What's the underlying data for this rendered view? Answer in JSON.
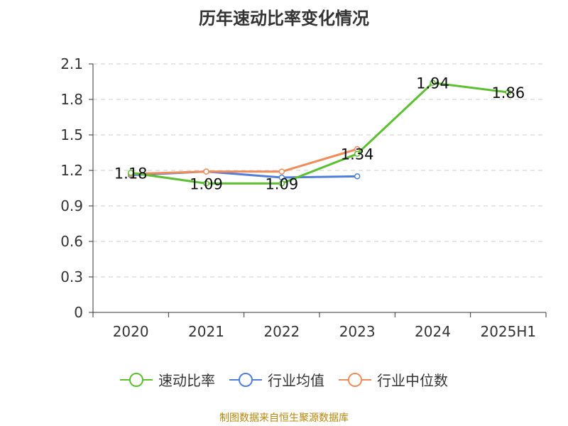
{
  "chart_data": {
    "type": "line",
    "title": "历年速动比率变化情况",
    "categories": [
      "2020",
      "2021",
      "2022",
      "2023",
      "2024",
      "2025H1"
    ],
    "ylim": [
      0,
      2.1
    ],
    "yticks": [
      "0",
      "0.3",
      "0.6",
      "0.9",
      "1.2",
      "1.5",
      "1.8",
      "2.1"
    ],
    "grid": true,
    "legend_position": "bottom",
    "series": [
      {
        "name": "速动比率",
        "color": "#5cc030",
        "values": [
          1.18,
          1.09,
          1.09,
          1.34,
          1.94,
          1.86
        ],
        "labels": [
          "1.18",
          "1.09",
          "1.09",
          "1.34",
          "1.94",
          "1.86"
        ]
      },
      {
        "name": "行业均值",
        "color": "#4f7fda",
        "values": [
          1.16,
          1.19,
          1.14,
          1.15,
          null,
          null
        ]
      },
      {
        "name": "行业中位数",
        "color": "#f08c5a",
        "values": [
          1.17,
          1.19,
          1.19,
          1.38,
          null,
          null
        ]
      }
    ]
  },
  "source_text": "制图数据来自恒生聚源数据库"
}
